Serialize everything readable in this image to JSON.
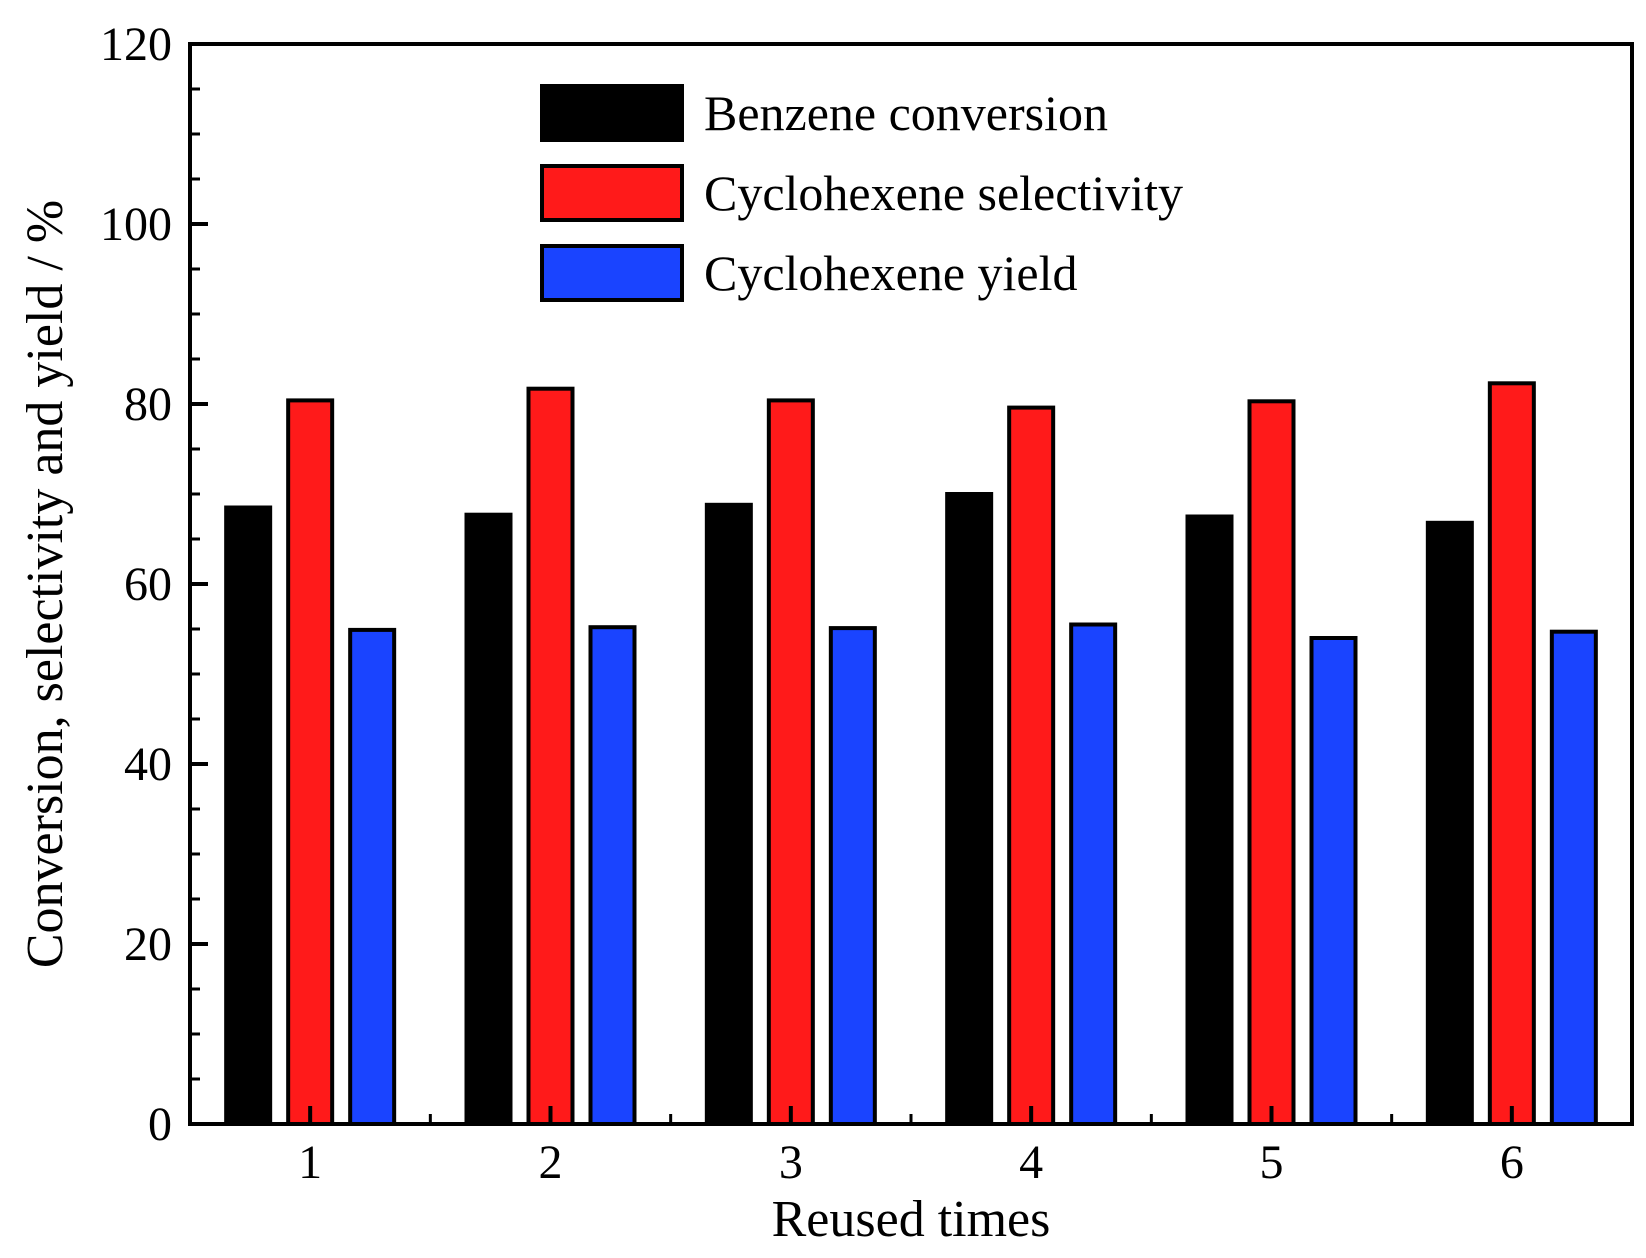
{
  "chart_data": {
    "type": "bar",
    "title": "",
    "xlabel": "Reused times",
    "ylabel": "Conversion, selectivity and yield / %",
    "categories": [
      "1",
      "2",
      "3",
      "4",
      "5",
      "6"
    ],
    "ylim": [
      0,
      120
    ],
    "yticks": [
      "0",
      "20",
      "40",
      "60",
      "80",
      "100",
      "120"
    ],
    "grid": false,
    "legend_position": "top-center",
    "series": [
      {
        "name": "Benzene conversion",
        "color": "#000000",
        "values": [
          68.5,
          67.7,
          68.8,
          70.0,
          67.5,
          66.8
        ]
      },
      {
        "name": "Cyclohexene selectivity",
        "color": "#ff1a1a",
        "values": [
          80.4,
          81.7,
          80.4,
          79.6,
          80.3,
          82.3
        ]
      },
      {
        "name": "Cyclohexene yield",
        "color": "#1a44ff",
        "values": [
          54.9,
          55.2,
          55.1,
          55.5,
          54.0,
          54.7
        ]
      }
    ]
  }
}
